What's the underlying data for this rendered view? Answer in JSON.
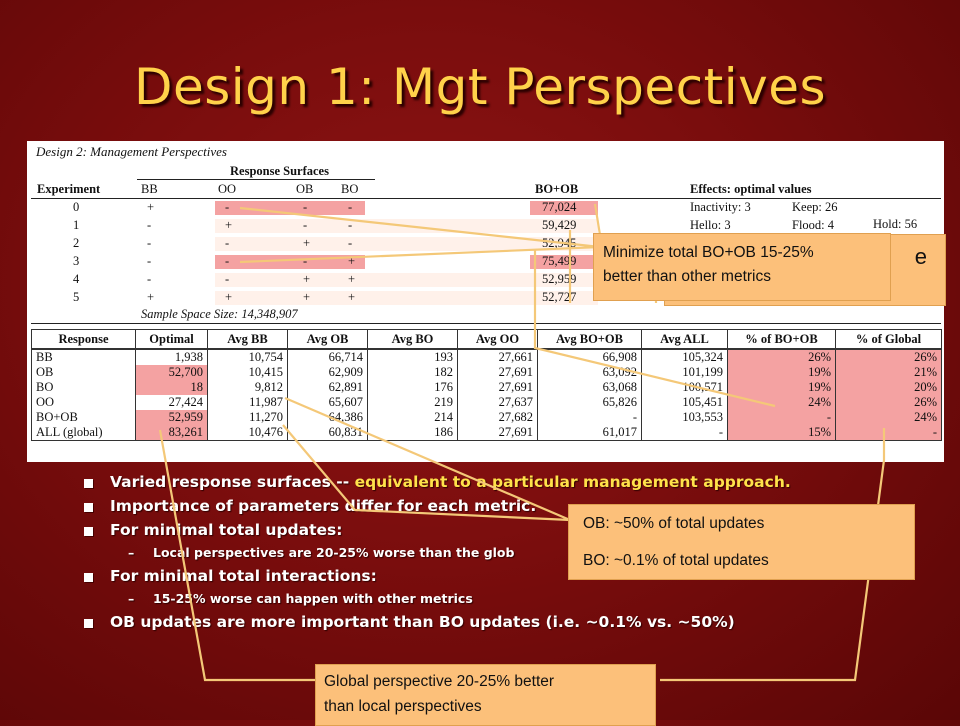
{
  "slide": {
    "title": "Design 1: Mgt Perspectives"
  },
  "paper": {
    "caption": "Design 2: Management Perspectives",
    "table1": {
      "group_header": "Response Surfaces",
      "headers": [
        "Experiment",
        "BB",
        "OO",
        "OB",
        "BO",
        "BO+OB",
        "Effects: optimal values"
      ],
      "rows": [
        {
          "exp": "0",
          "bb": "+",
          "oo": "-",
          "ob": "-",
          "bo": "-",
          "bo_ob": "77,024",
          "e1": "Inactivity: 3",
          "e2": "Keep: 26",
          "e3": "Hold: 56"
        },
        {
          "exp": "1",
          "bb": "-",
          "oo": "+",
          "ob": "-",
          "bo": "-",
          "bo_ob": "59,429",
          "e1": "Hello: 3",
          "e2": "Flood: 4",
          "e3": ""
        },
        {
          "exp": "2",
          "bb": "-",
          "oo": "-",
          "ob": "+",
          "bo": "-",
          "bo_ob": "52,945",
          "e1": "",
          "e2": "",
          "e3": ""
        },
        {
          "exp": "3",
          "bb": "-",
          "oo": "-",
          "ob": "-",
          "bo": "+",
          "bo_ob": "75,499",
          "e1": "",
          "e2": "",
          "e3": ""
        },
        {
          "exp": "4",
          "bb": "-",
          "oo": "-",
          "ob": "+",
          "bo": "+",
          "bo_ob": "52,959",
          "e1": "",
          "e2": "",
          "e3": ""
        },
        {
          "exp": "5",
          "bb": "+",
          "oo": "+",
          "ob": "+",
          "bo": "+",
          "bo_ob": "52,727",
          "e1": "",
          "e2": "",
          "e3": ""
        }
      ],
      "footer": "Sample Space Size: 14,348,907"
    },
    "table2": {
      "headers": [
        "Response",
        "Optimal",
        "Avg BB",
        "Avg OB",
        "Avg BO",
        "Avg OO",
        "Avg BO+OB",
        "Avg ALL",
        "% of BO+OB",
        "% of Global"
      ],
      "rows": [
        [
          "BB",
          "1,938",
          "10,754",
          "66,714",
          "193",
          "27,661",
          "66,908",
          "105,324",
          "26%",
          "26%"
        ],
        [
          "OB",
          "52,700",
          "10,415",
          "62,909",
          "182",
          "27,691",
          "63,092",
          "101,199",
          "19%",
          "21%"
        ],
        [
          "BO",
          "18",
          "9,812",
          "62,891",
          "176",
          "27,691",
          "63,068",
          "100,571",
          "19%",
          "20%"
        ],
        [
          "OO",
          "27,424",
          "11,987",
          "65,607",
          "219",
          "27,637",
          "65,826",
          "105,451",
          "24%",
          "26%"
        ],
        [
          "BO+OB",
          "52,959",
          "11,270",
          "64,386",
          "214",
          "27,682",
          "-",
          "103,553",
          "-",
          "24%"
        ],
        [
          "ALL (global)",
          "83,261",
          "10,476",
          "60,831",
          "186",
          "27,691",
          "61,017",
          "-",
          "15%",
          "-"
        ]
      ]
    }
  },
  "bullets": [
    {
      "level": 1,
      "text": "Varied response surfaces -- ",
      "highlight": "equivalent to a particular management approach."
    },
    {
      "level": 1,
      "text": "Importance of parameters differ for each metric.",
      "highlight": ""
    },
    {
      "level": 1,
      "text": "For minimal total updates:",
      "highlight": ""
    },
    {
      "level": 2,
      "text": "Local perspectives are 20-25% worse than the glob",
      "highlight": ""
    },
    {
      "level": 1,
      "text": "For minimal total interactions:",
      "highlight": ""
    },
    {
      "level": 2,
      "text": "15-25% worse can happen with other metrics",
      "highlight": ""
    },
    {
      "level": 1,
      "text": "OB updates are more important than BO updates (i.e. ~0.1% vs. ~50%)",
      "highlight": ""
    }
  ],
  "callouts": {
    "minimize_line1": "Minimize total BO+OB  15-25%",
    "minimize_line2": "better than other metrics",
    "minimize_peek": "e",
    "ob_line": "OB: ~50% of total updates",
    "bo_line": "BO: ~0.1% of total updates",
    "global_line1": "Global perspective 20-25% better",
    "global_line2": "than local perspectives"
  },
  "colors": {
    "background": "#7a0d0d",
    "title": "#ffd24a",
    "highlight_text": "#ffe24a",
    "callout": "#fcc07a",
    "pink_cell": "#f4a2a2",
    "connector": "#f4c878"
  }
}
